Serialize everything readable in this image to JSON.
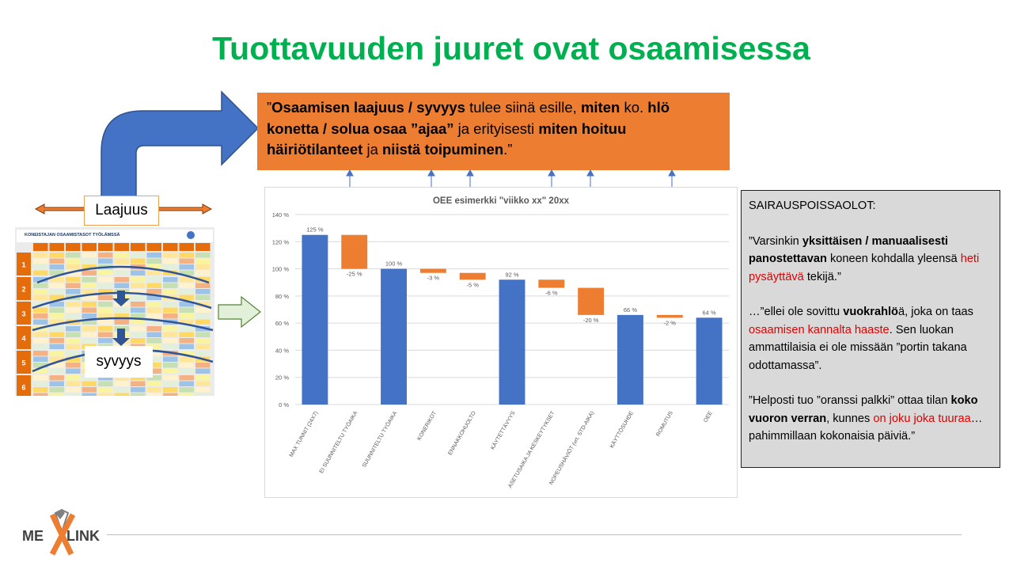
{
  "title": "Tuottavuuden juuret ovat osaamisessa",
  "quote": {
    "p1": "”",
    "b1": "Osaamisen laajuus / syvyys",
    "p2": " tulee siinä esille, ",
    "b2": "miten",
    "p3": " ko. ",
    "b3": "hlö konetta / solua osaa ”ajaa”",
    "p4": " ja erityisesti ",
    "b4": "miten hoituu häiriötilanteet",
    "p5": " ja ",
    "b5": "niistä toipuminen",
    "p6": ".”"
  },
  "labels": {
    "laajuus": "Laajuus",
    "syvyys": "syvyys"
  },
  "matrix": {
    "header": "KONEISTAJAN OSAAMISTASOT TYÖLÄMSSÄ",
    "rows": [
      "1",
      "2",
      "3",
      "4",
      "5",
      "6"
    ]
  },
  "chart_data": {
    "type": "bar",
    "subtype": "waterfall",
    "title": "OEE esimerkki \"viikko xx\" 20xx",
    "categories": [
      "MAX TUNNIT (24X7)",
      "EI SUUNNITELTU TYÖAIKA",
      "SUUNNITELTU TYÖAIKA",
      "KONERIKOT",
      "ENNAKKOHUOLTO",
      "KÄYTETTÄVYYS",
      "ASETUSAIKA JA KESKEYTYKSET",
      "NOPEUSHÄVIÖT (vrt. STD-AIKA)",
      "KÄYTTÖSUHDE",
      "ROMUTUS",
      "OEE"
    ],
    "values": [
      125,
      -25,
      100,
      -3,
      -5,
      92,
      -6,
      -20,
      66,
      -2,
      64
    ],
    "value_labels": [
      "125 %",
      "-25 %",
      "100 %",
      "-3 %",
      "-5 %",
      "92 %",
      "-6 %",
      "-20 %",
      "66 %",
      "-2 %",
      "64 %"
    ],
    "ylim": [
      0,
      140
    ],
    "yticks": [
      "0 %",
      "20 %",
      "40 %",
      "60 %",
      "80 %",
      "100 %",
      "120 %",
      "140 %"
    ],
    "grid": true,
    "colors": {
      "total": "#4472c4",
      "loss": "#ed7d31",
      "grid": "#d9d9d9",
      "arrow": "#4472c4"
    }
  },
  "side": {
    "head": "SAIRAUSPOISSAOLOT:",
    "q1": {
      "a": "”Varsinkin ",
      "b": "yksittäisen / manuaalisesti panostettavan",
      "c": " koneen kohdalla yleensä ",
      "red": "heti pysäyttävä",
      "d": " tekijä.”"
    },
    "q2": {
      "a": "…”ellei ole sovittu ",
      "b": "vuokrahlö",
      "c": "ä, joka on taas ",
      "red": "osaamisen kannalta haaste",
      "d": ". Sen luokan ammattilaisia ei ole missään ”portin takana odottamassa”."
    },
    "q3": {
      "a": "”Helposti tuo ”oranssi palkki” ottaa tilan ",
      "b": "koko vuoron verran",
      "c": ", kunnes ",
      "red": "on joku joka tuuraa",
      "d": "…pahimmillaan kokonaisia päiviä.”"
    }
  },
  "logo": {
    "left": "ME",
    "right": "LINK"
  }
}
